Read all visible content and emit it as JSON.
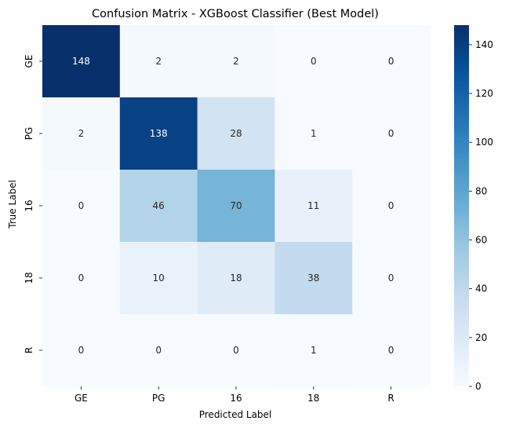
{
  "chart_data": {
    "type": "heatmap",
    "title": "Confusion Matrix - XGBoost Classifier (Best Model)",
    "xlabel": "Predicted Label",
    "ylabel": "True Label",
    "x_categories": [
      "GE",
      "PG",
      "16",
      "18",
      "R"
    ],
    "y_categories": [
      "GE",
      "PG",
      "16",
      "18",
      "R"
    ],
    "values": [
      [
        148,
        2,
        2,
        0,
        0
      ],
      [
        2,
        138,
        28,
        1,
        0
      ],
      [
        0,
        46,
        70,
        11,
        0
      ],
      [
        0,
        10,
        18,
        38,
        0
      ],
      [
        0,
        0,
        0,
        1,
        0
      ]
    ],
    "colorbar": {
      "min": 0,
      "max": 148,
      "ticks": [
        0,
        20,
        40,
        60,
        80,
        100,
        120,
        140
      ]
    },
    "colormap": "Blues",
    "colors": {
      "low": "#f7fbff",
      "high": "#08306b"
    }
  }
}
